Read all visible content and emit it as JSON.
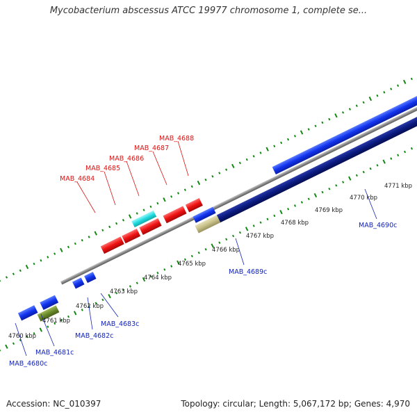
{
  "title": "Mycobacterium abscessus ATCC 19977 chromosome 1, complete se...",
  "footer": {
    "accession": "Accession: NC_010397",
    "summary": "Topology: circular; Length: 5,067,172 bp; Genes: 4,970"
  },
  "colors": {
    "forward_label": "#dd1111",
    "reverse_label": "#1122bb",
    "forward_gene": "#ee1111",
    "reverse_gene": "#1133ee",
    "dark_gene": "#0a1a80",
    "cyan_gene": "#22dde0",
    "olive_gene": "#6b8a2a",
    "khaki_gene": "#c8c088",
    "backbone": "#8a8a8a",
    "tick": "#118811"
  },
  "ruler": [
    "4760 kbp",
    "4761 kbp",
    "4762 kbp",
    "4763 kbp",
    "4764 kbp",
    "4765 kbp",
    "4766 kbp",
    "4767 kbp",
    "4768 kbp",
    "4769 kbp",
    "4770 kbp",
    "4771 kbp"
  ],
  "gene_labels": {
    "forward": [
      "MAB_4684",
      "MAB_4685",
      "MAB_4686",
      "MAB_4687",
      "MAB_4688"
    ],
    "reverse": [
      "MAB_4680c",
      "MAB_4681c",
      "MAB_4682c",
      "MAB_4683c",
      "MAB_4689c",
      "MAB_4690c"
    ]
  }
}
